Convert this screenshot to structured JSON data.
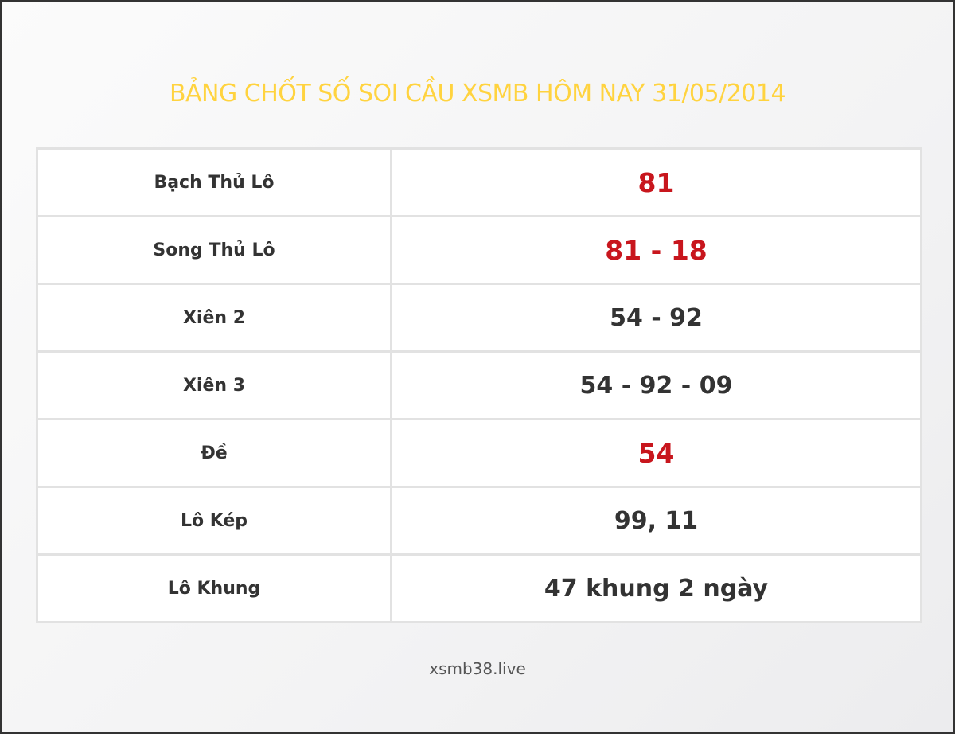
{
  "title": "BẢNG CHỐT SỐ SOI CẦU XSMB HÔM NAY 31/05/2014",
  "accent_color": "#ffd33f",
  "highlight_color": "#c8161d",
  "rows": [
    {
      "label": "Bạch Thủ Lô",
      "value": "81",
      "highlight": true
    },
    {
      "label": "Song Thủ Lô",
      "value": "81 - 18",
      "highlight": true
    },
    {
      "label": "Xiên 2",
      "value": "54 - 92",
      "highlight": false
    },
    {
      "label": "Xiên 3",
      "value": "54 - 92 - 09",
      "highlight": false
    },
    {
      "label": "Đề",
      "value": "54",
      "highlight": true
    },
    {
      "label": "Lô Kép",
      "value": "99, 11",
      "highlight": false
    },
    {
      "label": "Lô Khung",
      "value": "47 khung 2 ngày",
      "highlight": false
    }
  ],
  "footer": "xsmb38.live"
}
